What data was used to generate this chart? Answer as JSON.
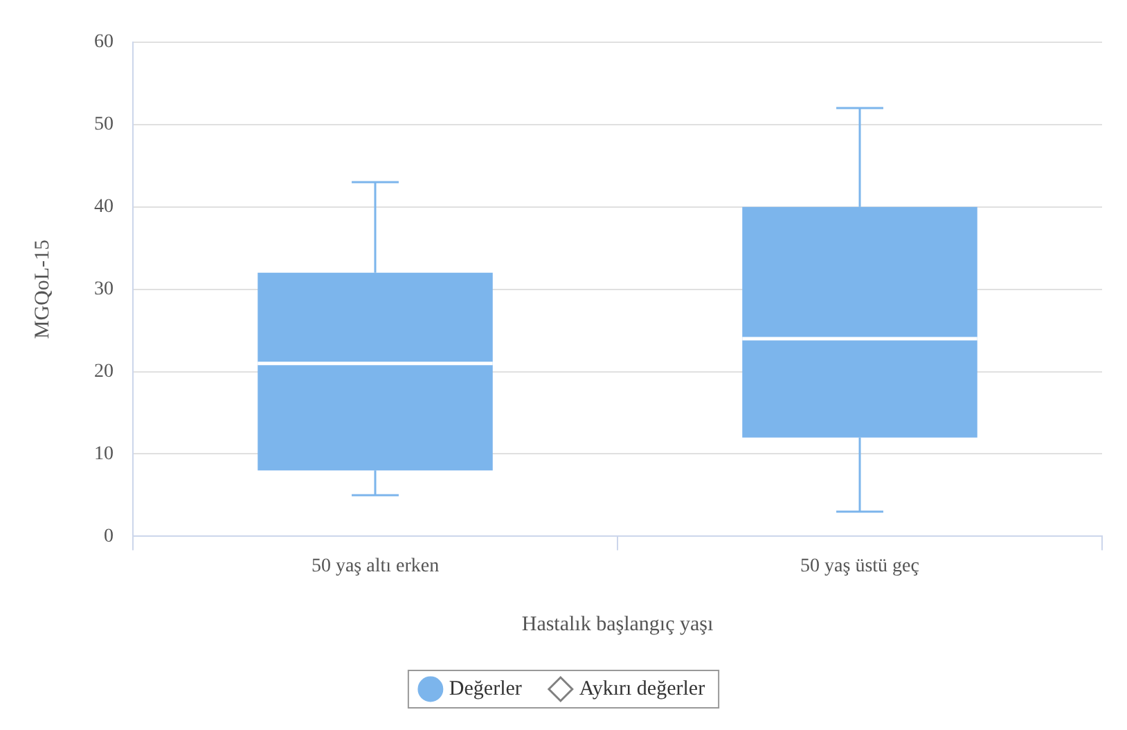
{
  "chart_data": {
    "type": "box",
    "xlabel": "Hastalık başlangıç yaşı",
    "ylabel": "MGQoL-15",
    "categories": [
      "50 yaş altı erken",
      "50 yaş üstü geç"
    ],
    "ylim": [
      0,
      60
    ],
    "yticks": [
      0,
      10,
      20,
      30,
      40,
      50,
      60
    ],
    "grid": "y",
    "legend": "bottom",
    "series": [
      {
        "name": "Değerler",
        "type": "box",
        "color": "#7cb5ec",
        "boxes": [
          {
            "low": 5,
            "q1": 8,
            "median": 21,
            "q3": 32,
            "high": 43
          },
          {
            "low": 3,
            "q1": 12,
            "median": 24,
            "q3": 40,
            "high": 52
          }
        ]
      },
      {
        "name": "Aykırı değerler",
        "type": "scatter",
        "color": "#808080",
        "marker": "diamond",
        "values": [
          null,
          null
        ]
      }
    ]
  }
}
